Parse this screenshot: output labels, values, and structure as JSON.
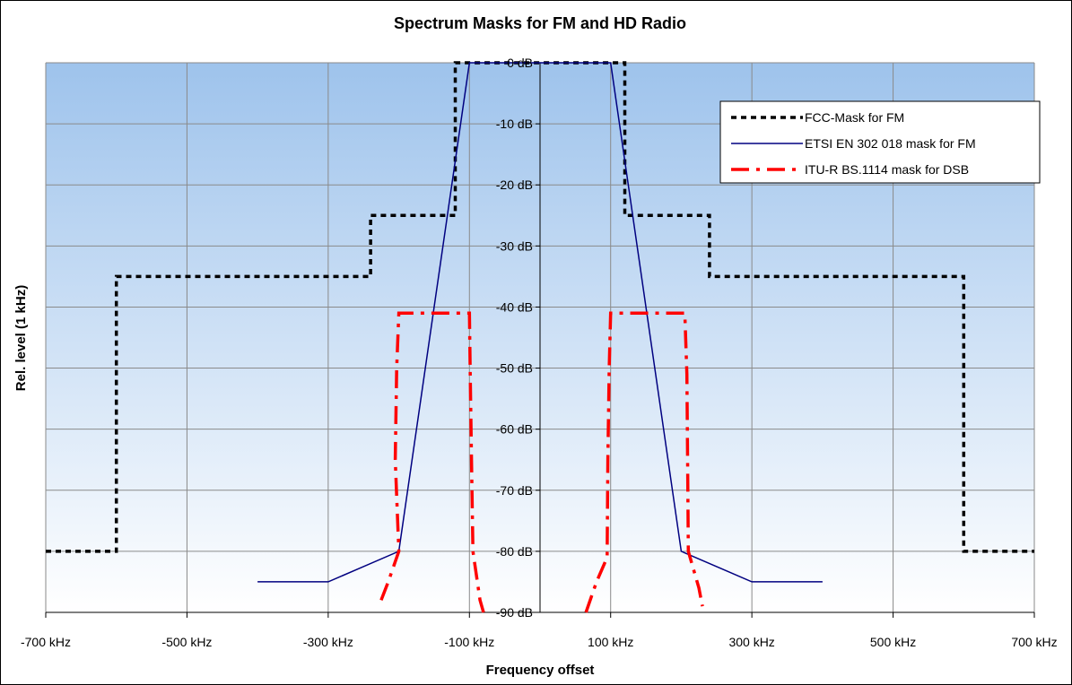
{
  "chart_data": {
    "type": "line",
    "title": "Spectrum Masks for FM and HD Radio",
    "xlabel": "Frequency offset",
    "ylabel": "Rel. level (1 kHz)",
    "xlim": [
      -700,
      700
    ],
    "ylim": [
      -90,
      0
    ],
    "x_tick_values": [
      -700,
      -500,
      -300,
      -100,
      100,
      300,
      500,
      700
    ],
    "x_tick_labels": [
      "-700 kHz",
      "-500 kHz",
      "-300 kHz",
      "-100 kHz",
      "100 kHz",
      "300 kHz",
      "500 kHz",
      "700 kHz"
    ],
    "y_tick_values": [
      0,
      -10,
      -20,
      -30,
      -40,
      -50,
      -60,
      -70,
      -80,
      -90
    ],
    "y_tick_labels": [
      "0 dB",
      "-10 dB",
      "-20 dB",
      "-30 dB",
      "-40 dB",
      "-50 dB",
      "-60 dB",
      "-70 dB",
      "-80 dB",
      "-90 dB"
    ],
    "grid": true,
    "legend_position": "top-right",
    "series": [
      {
        "name": "FCC-Mask for FM",
        "color": "#000000",
        "style": "dotted",
        "points": [
          [
            -700,
            -80
          ],
          [
            -600,
            -80
          ],
          [
            -600,
            -35
          ],
          [
            -240,
            -35
          ],
          [
            -240,
            -25
          ],
          [
            -120,
            -25
          ],
          [
            -120,
            0
          ],
          [
            120,
            0
          ],
          [
            120,
            -25
          ],
          [
            240,
            -25
          ],
          [
            240,
            -35
          ],
          [
            600,
            -35
          ],
          [
            600,
            -80
          ],
          [
            700,
            -80
          ]
        ]
      },
      {
        "name": "ETSI EN 302 018 mask for FM",
        "color": "#000080",
        "style": "solid",
        "points": [
          [
            -400,
            -85
          ],
          [
            -300,
            -85
          ],
          [
            -200,
            -80
          ],
          [
            -100,
            0
          ],
          [
            100,
            0
          ],
          [
            200,
            -80
          ],
          [
            300,
            -85
          ],
          [
            400,
            -85
          ]
        ]
      },
      {
        "name": "ITU-R BS.1114 mask for DSB",
        "color": "#ff0000",
        "style": "dashed",
        "segments": [
          [
            [
              -225,
              -88
            ],
            [
              -215,
              -85
            ],
            [
              -200,
              -80
            ],
            [
              -205,
              -65
            ],
            [
              -203,
              -50
            ],
            [
              -200,
              -41
            ],
            [
              -100,
              -41
            ],
            [
              -99,
              -50
            ],
            [
              -97,
              -65
            ],
            [
              -95,
              -80
            ],
            [
              -85,
              -88
            ],
            [
              -80,
              -90
            ]
          ],
          [
            [
              65,
              -90
            ],
            [
              80,
              -85
            ],
            [
              95,
              -81
            ],
            [
              96,
              -65
            ],
            [
              98,
              -50
            ],
            [
              100,
              -41
            ],
            [
              205,
              -41
            ],
            [
              208,
              -51
            ],
            [
              209,
              -65
            ],
            [
              210,
              -80
            ],
            [
              225,
              -86
            ],
            [
              230,
              -89
            ]
          ]
        ]
      }
    ]
  }
}
